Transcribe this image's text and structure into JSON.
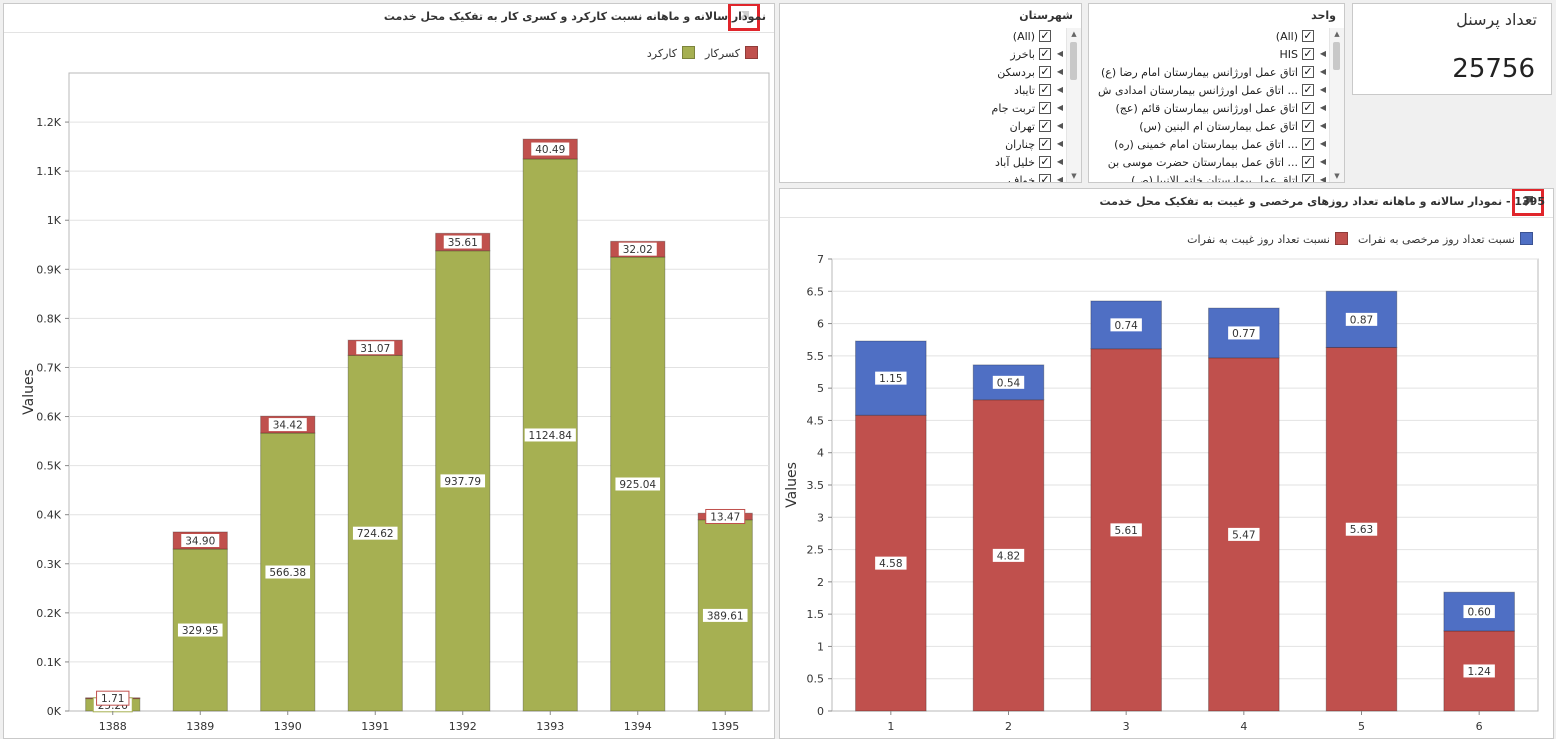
{
  "left_chart": {
    "title": "نمودار سالانه و ماهانه نسبت کارکرد و کسری کار به تفکیک محل خدمت",
    "legend": [
      {
        "label": "کسرکار",
        "color": "#c0504d"
      },
      {
        "label": "کارکرد",
        "color": "#a6b052"
      }
    ]
  },
  "right_chart": {
    "title": "1395 - نمودار سالانه و ماهانه تعداد روزهای مرخصی و غیبت به تفکیک محل خدمت",
    "legend": [
      {
        "label": "نسبت تعداد روز مرخصی به نفرات",
        "color": "#4f6fc4"
      },
      {
        "label": "نسبت تعداد روز غیبت به نفرات",
        "color": "#c0504d"
      }
    ]
  },
  "kpi": {
    "title": "تعداد پرسنل",
    "value": "25756"
  },
  "filter_city": {
    "title": "شهرستان",
    "items": [
      "(All)",
      "باخرز",
      "بردسکن",
      "تایباد",
      "تربت جام",
      "تهران",
      "چناران",
      "خلیل آباد",
      "خواف"
    ]
  },
  "filter_unit": {
    "title": "واحد",
    "items": [
      "(All)",
      "HIS",
      "اتاق عمل اورژانس بیمارستان امام رضا (ع)",
      "... اتاق عمل اورژانس بیمارستان امدادی ش",
      "اتاق عمل اورژانس بیمارستان قائم (عج)",
      "اتاق عمل بیمارستان ام البنین (س)",
      "... اتاق عمل بیمارستان امام خمینی (ره)",
      "... اتاق عمل بیمارستان حضرت موسی بن",
      "اتاق عمل بیمارستان خاتم الانبیا (ص)"
    ]
  },
  "chart_data": [
    {
      "type": "bar",
      "stacked": true,
      "categories": [
        "1388",
        "1389",
        "1390",
        "1391",
        "1392",
        "1393",
        "1394",
        "1395"
      ],
      "series": [
        {
          "name": "کارکرد",
          "color": "#a6b052",
          "values": [
            25.26,
            329.95,
            566.38,
            724.62,
            937.79,
            1124.84,
            925.04,
            389.61
          ]
        },
        {
          "name": "کسرکار",
          "color": "#c0504d",
          "values": [
            1.71,
            34.9,
            34.42,
            31.07,
            35.61,
            40.49,
            32.02,
            13.47
          ]
        }
      ],
      "data_labels": [
        [
          "25.26",
          "329.95",
          "566.38",
          "724.62",
          "937.79",
          "1124.84",
          "925.04",
          "389.61"
        ],
        [
          "1.71",
          "34.90",
          "34.42",
          "31.07",
          "35.61",
          "40.49",
          "32.02",
          "13.47"
        ]
      ],
      "ylabel": "Values",
      "ylim": [
        0,
        1300
      ],
      "yticks": [
        0,
        100,
        200,
        300,
        400,
        500,
        600,
        700,
        800,
        900,
        1000,
        1100,
        1200
      ],
      "ytick_labels": [
        "0K",
        "0.1K",
        "0.2K",
        "0.3K",
        "0.4K",
        "0.5K",
        "0.6K",
        "0.7K",
        "0.8K",
        "0.9K",
        "1K",
        "1.1K",
        "1.2K"
      ],
      "grid": true,
      "legend_position": "top-right"
    },
    {
      "type": "bar",
      "stacked": true,
      "categories": [
        "1",
        "2",
        "3",
        "4",
        "5",
        "6"
      ],
      "series": [
        {
          "name": "نسبت تعداد روز غیبت به نفرات",
          "color": "#c0504d",
          "values": [
            4.58,
            4.82,
            5.61,
            5.47,
            5.63,
            1.24
          ]
        },
        {
          "name": "نسبت تعداد روز مرخصی به نفرات",
          "color": "#4f6fc4",
          "values": [
            1.15,
            0.54,
            0.74,
            0.77,
            0.87,
            0.6
          ]
        }
      ],
      "data_labels": [
        [
          "4.58",
          "4.82",
          "5.61",
          "5.47",
          "5.63",
          "1.24"
        ],
        [
          "1.15",
          "0.54",
          "0.74",
          "0.77",
          "0.87",
          "0.60"
        ]
      ],
      "ylabel": "Values",
      "ylim": [
        0,
        7
      ],
      "yticks": [
        0,
        0.5,
        1,
        1.5,
        2,
        2.5,
        3,
        3.5,
        4,
        4.5,
        5,
        5.5,
        6,
        6.5,
        7
      ],
      "ytick_labels": [
        "0",
        "0.5",
        "1",
        "1.5",
        "2",
        "2.5",
        "3",
        "3.5",
        "4",
        "4.5",
        "5",
        "5.5",
        "6",
        "6.5",
        "7"
      ],
      "grid": true,
      "legend_position": "top-right"
    }
  ]
}
